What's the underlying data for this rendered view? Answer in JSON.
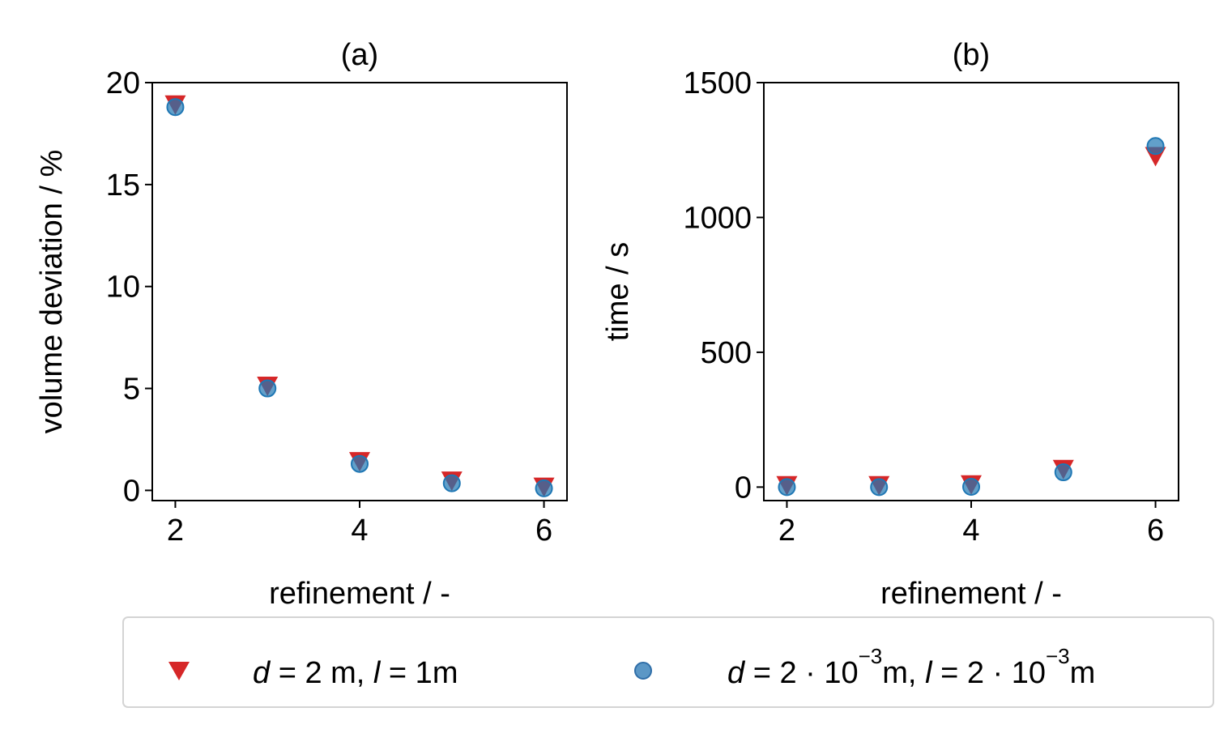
{
  "chart_data": [
    {
      "type": "scatter",
      "title": "(a)",
      "xlabel": "refinement / -",
      "ylabel": "volume deviation / %",
      "xlim": [
        1.75,
        6.25
      ],
      "ylim": [
        -0.5,
        20
      ],
      "xticks": [
        2,
        4,
        6
      ],
      "yticks": [
        0,
        5,
        10,
        15,
        20
      ],
      "grid": false,
      "x": [
        2,
        3,
        4,
        5,
        6
      ],
      "series": [
        {
          "name": "d = 2 m, l = 1m",
          "marker": "triangle-down",
          "color": "#d62728",
          "values": [
            18.9,
            5.1,
            1.4,
            0.45,
            0.15
          ]
        },
        {
          "name": "d = 2·10⁻³m, l = 2·10⁻³m",
          "marker": "circle",
          "color": "#1f77b4",
          "values": [
            18.8,
            5.0,
            1.3,
            0.35,
            0.1
          ]
        }
      ]
    },
    {
      "type": "scatter",
      "title": "(b)",
      "xlabel": "refinement / -",
      "ylabel": "time / s",
      "xlim": [
        1.75,
        6.25
      ],
      "ylim": [
        -50,
        1500
      ],
      "xticks": [
        2,
        4,
        6
      ],
      "yticks": [
        0,
        500,
        1000,
        1500
      ],
      "grid": false,
      "x": [
        2,
        3,
        4,
        5,
        6
      ],
      "series": [
        {
          "name": "d = 2 m, l = 1m",
          "marker": "triangle-down",
          "color": "#d62728",
          "values": [
            5,
            5,
            8,
            65,
            1225
          ]
        },
        {
          "name": "d = 2·10⁻³m, l = 2·10⁻³m",
          "marker": "circle",
          "color": "#1f77b4",
          "values": [
            0,
            0,
            1,
            55,
            1265
          ]
        }
      ]
    }
  ],
  "legend": {
    "placement": "bottom-center",
    "entries": [
      {
        "var1": "d",
        "mid1": " = 2 m, ",
        "var2": "l",
        "mid2": " = 1m",
        "color": "#d62728",
        "marker": "triangle-down"
      },
      {
        "var1": "d",
        "mid1": " = 2 · 10",
        "exp1": "−3",
        "mid2": "m, ",
        "var2": "l",
        "mid3": " = 2 · 10",
        "exp2": "−3",
        "tail": "m",
        "color": "#1f77b4",
        "marker": "circle"
      }
    ]
  }
}
